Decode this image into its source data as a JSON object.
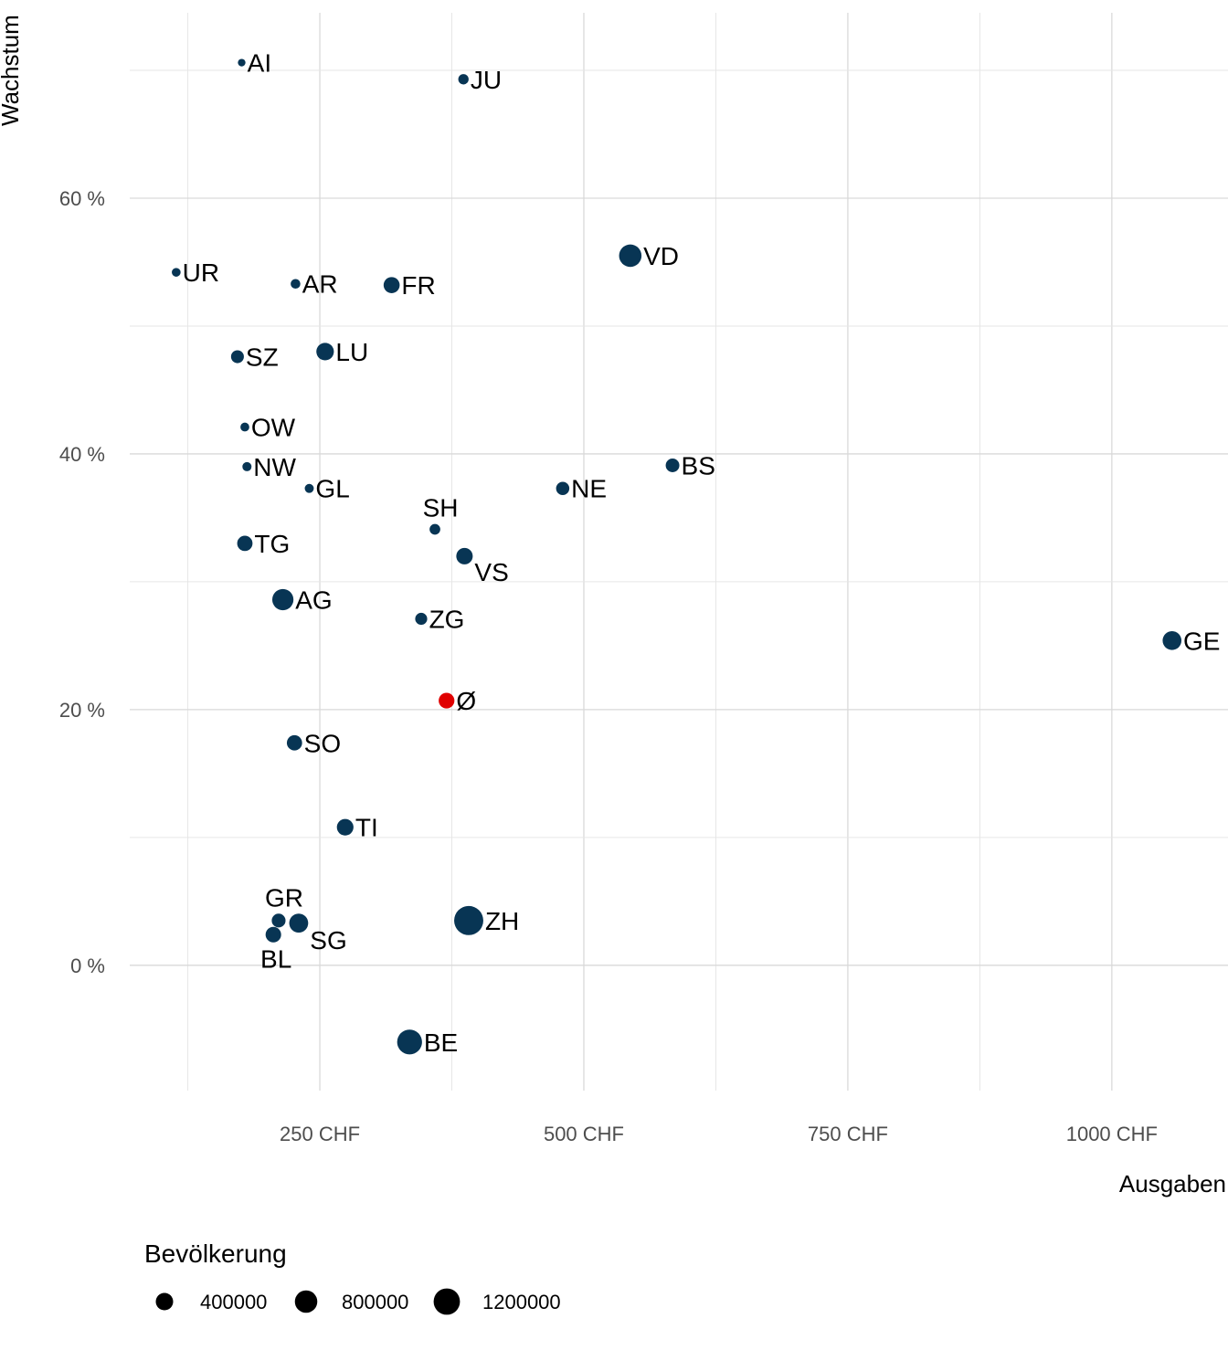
{
  "chart_data": {
    "type": "scatter",
    "xlabel": "Ausgaben",
    "ylabel": "Wachstum",
    "xlim": [
      70,
      1110
    ],
    "ylim": [
      -9.8,
      74.5
    ],
    "x_ticks": [
      250,
      500,
      750,
      1000
    ],
    "x_tick_labels": [
      "250 CHF",
      "500 CHF",
      "750 CHF",
      "1000 CHF"
    ],
    "y_ticks": [
      0,
      20,
      40,
      60
    ],
    "y_tick_labels": [
      "0 %",
      "20 %",
      "40 %",
      "60 %"
    ],
    "grid": true,
    "size_variable": "Bevölkerung",
    "legend": {
      "title": "Bevölkerung",
      "placement": "bottom-left",
      "entries": [
        {
          "label": "400000",
          "value": 400000
        },
        {
          "label": "800000",
          "value": 800000
        },
        {
          "label": "1200000",
          "value": 1200000
        }
      ]
    },
    "colors": {
      "canton": "#083554",
      "average": "#e00000"
    },
    "points": [
      {
        "label": "AI",
        "x": 176,
        "y": 70.6,
        "size": 16000,
        "label_pos": "right"
      },
      {
        "label": "JU",
        "x": 386,
        "y": 69.3,
        "size": 73000,
        "label_pos": "right"
      },
      {
        "label": "UR",
        "x": 114,
        "y": 54.2,
        "size": 36000,
        "label_pos": "right"
      },
      {
        "label": "AR",
        "x": 227,
        "y": 53.3,
        "size": 55000,
        "label_pos": "right"
      },
      {
        "label": "FR",
        "x": 318,
        "y": 53.2,
        "size": 320000,
        "label_pos": "right"
      },
      {
        "label": "VD",
        "x": 544,
        "y": 55.5,
        "size": 800000,
        "label_pos": "right"
      },
      {
        "label": "SZ",
        "x": 172,
        "y": 47.6,
        "size": 160000,
        "label_pos": "right"
      },
      {
        "label": "LU",
        "x": 255,
        "y": 48.0,
        "size": 410000,
        "label_pos": "right"
      },
      {
        "label": "OW",
        "x": 179,
        "y": 42.1,
        "size": 38000,
        "label_pos": "right"
      },
      {
        "label": "NW",
        "x": 181,
        "y": 39.0,
        "size": 43000,
        "label_pos": "right"
      },
      {
        "label": "GL",
        "x": 240,
        "y": 37.3,
        "size": 41000,
        "label_pos": "right"
      },
      {
        "label": "BS",
        "x": 584,
        "y": 39.1,
        "size": 195000,
        "label_pos": "right"
      },
      {
        "label": "NE",
        "x": 480,
        "y": 37.3,
        "size": 176000,
        "label_pos": "right"
      },
      {
        "label": "SH",
        "x": 359,
        "y": 34.1,
        "size": 83000,
        "label_pos": "above"
      },
      {
        "label": "VS",
        "x": 387,
        "y": 32.0,
        "size": 345000,
        "label_pos": "below-right"
      },
      {
        "label": "TG",
        "x": 179,
        "y": 33.0,
        "size": 280000,
        "label_pos": "right"
      },
      {
        "label": "AG",
        "x": 215,
        "y": 28.6,
        "size": 690000,
        "label_pos": "right"
      },
      {
        "label": "ZG",
        "x": 346,
        "y": 27.1,
        "size": 127000,
        "label_pos": "right"
      },
      {
        "label": "GE",
        "x": 1057,
        "y": 25.4,
        "size": 500000,
        "label_pos": "right"
      },
      {
        "label": "Ø",
        "x": 370,
        "y": 20.7,
        "size": 300000,
        "average": true,
        "label_pos": "right"
      },
      {
        "label": "SO",
        "x": 226,
        "y": 17.4,
        "size": 275000,
        "label_pos": "right"
      },
      {
        "label": "TI",
        "x": 274,
        "y": 10.8,
        "size": 350000,
        "label_pos": "right"
      },
      {
        "label": "GR",
        "x": 211,
        "y": 3.5,
        "size": 200000,
        "label_pos": "above"
      },
      {
        "label": "SG",
        "x": 230,
        "y": 3.3,
        "size": 510000,
        "label_pos": "below-right"
      },
      {
        "label": "BL",
        "x": 206,
        "y": 2.4,
        "size": 290000,
        "label_pos": "below"
      },
      {
        "label": "ZH",
        "x": 391,
        "y": 3.5,
        "size": 1540000,
        "label_pos": "right"
      },
      {
        "label": "BE",
        "x": 335,
        "y": -6.0,
        "size": 1040000,
        "label_pos": "right"
      }
    ]
  }
}
